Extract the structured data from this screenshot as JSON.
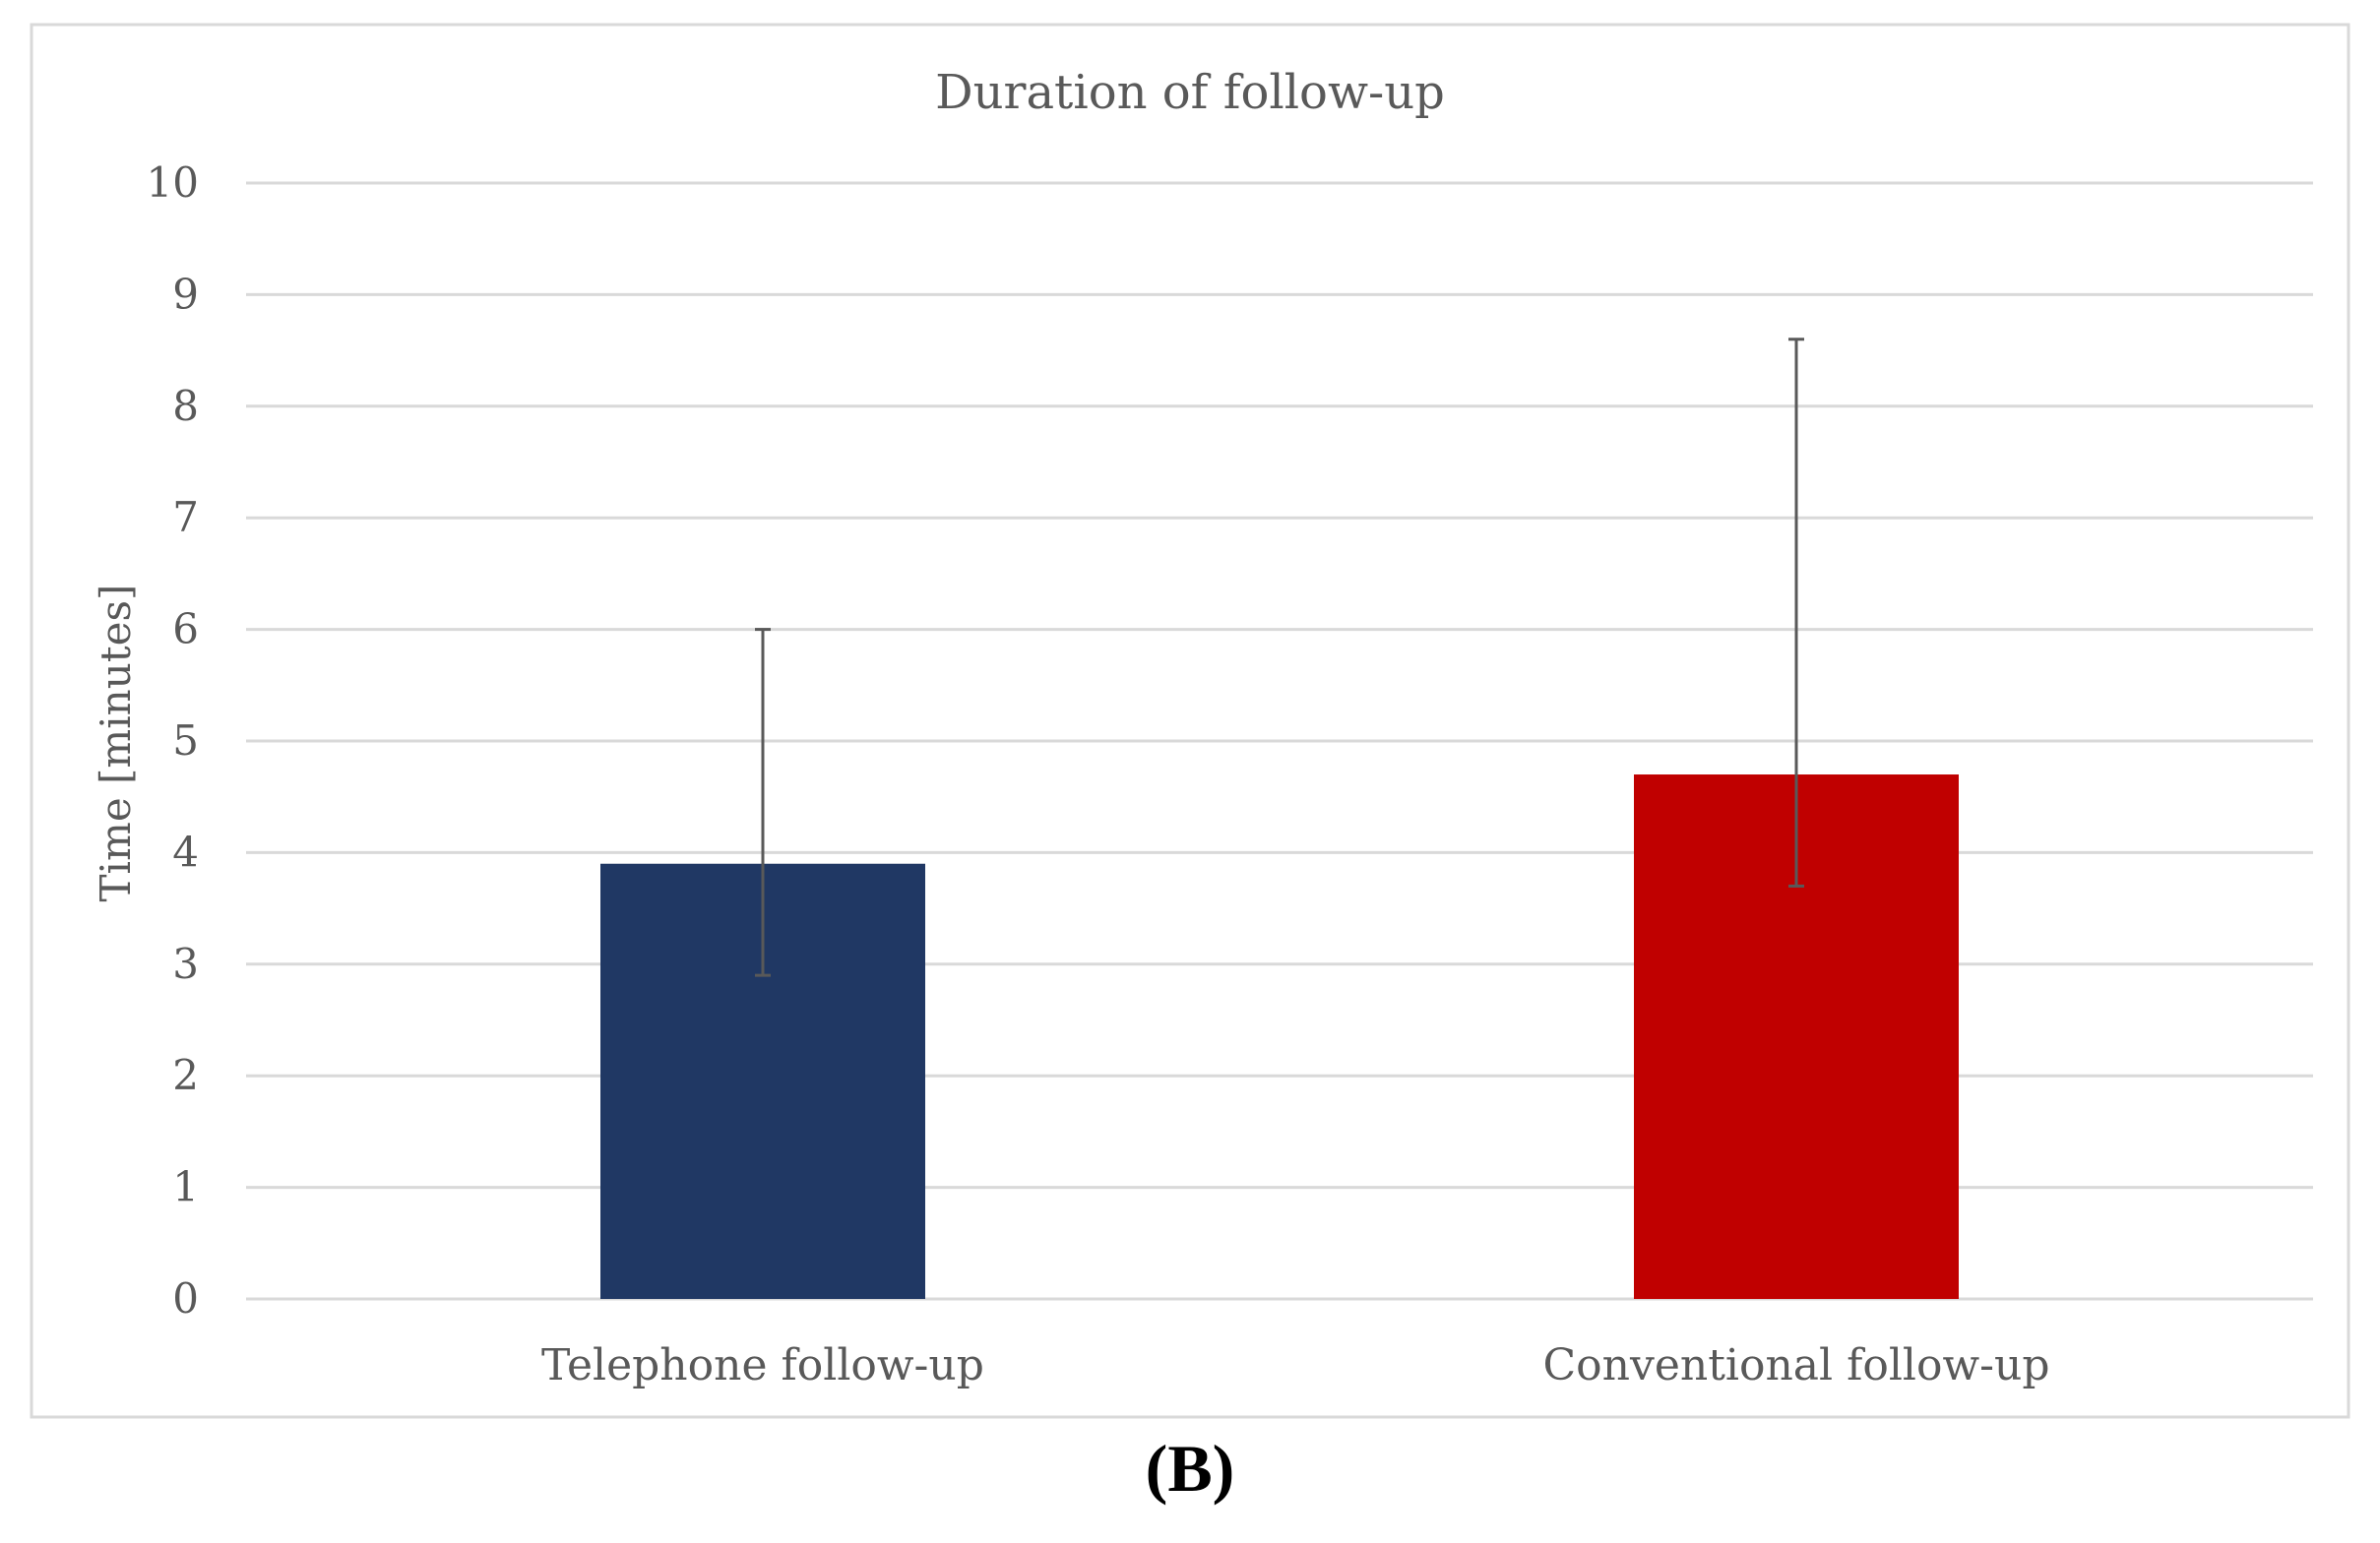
{
  "chart_data": {
    "type": "bar",
    "title": "Duration of follow-up",
    "xlabel": "",
    "ylabel": "Time [minutes]",
    "ylim": [
      0,
      10
    ],
    "yticks": [
      "0",
      "1",
      "2",
      "3",
      "4",
      "5",
      "6",
      "7",
      "8",
      "9",
      "10"
    ],
    "categories": [
      "Telephone follow-up",
      "Conventional follow-up"
    ],
    "values": [
      3.9,
      4.7
    ],
    "error_low": [
      2.9,
      3.7
    ],
    "error_high": [
      6.0,
      8.6
    ],
    "colors": [
      "#203864",
      "#c00000"
    ],
    "grid": true,
    "legend": "none"
  },
  "panel_label": "(B)"
}
